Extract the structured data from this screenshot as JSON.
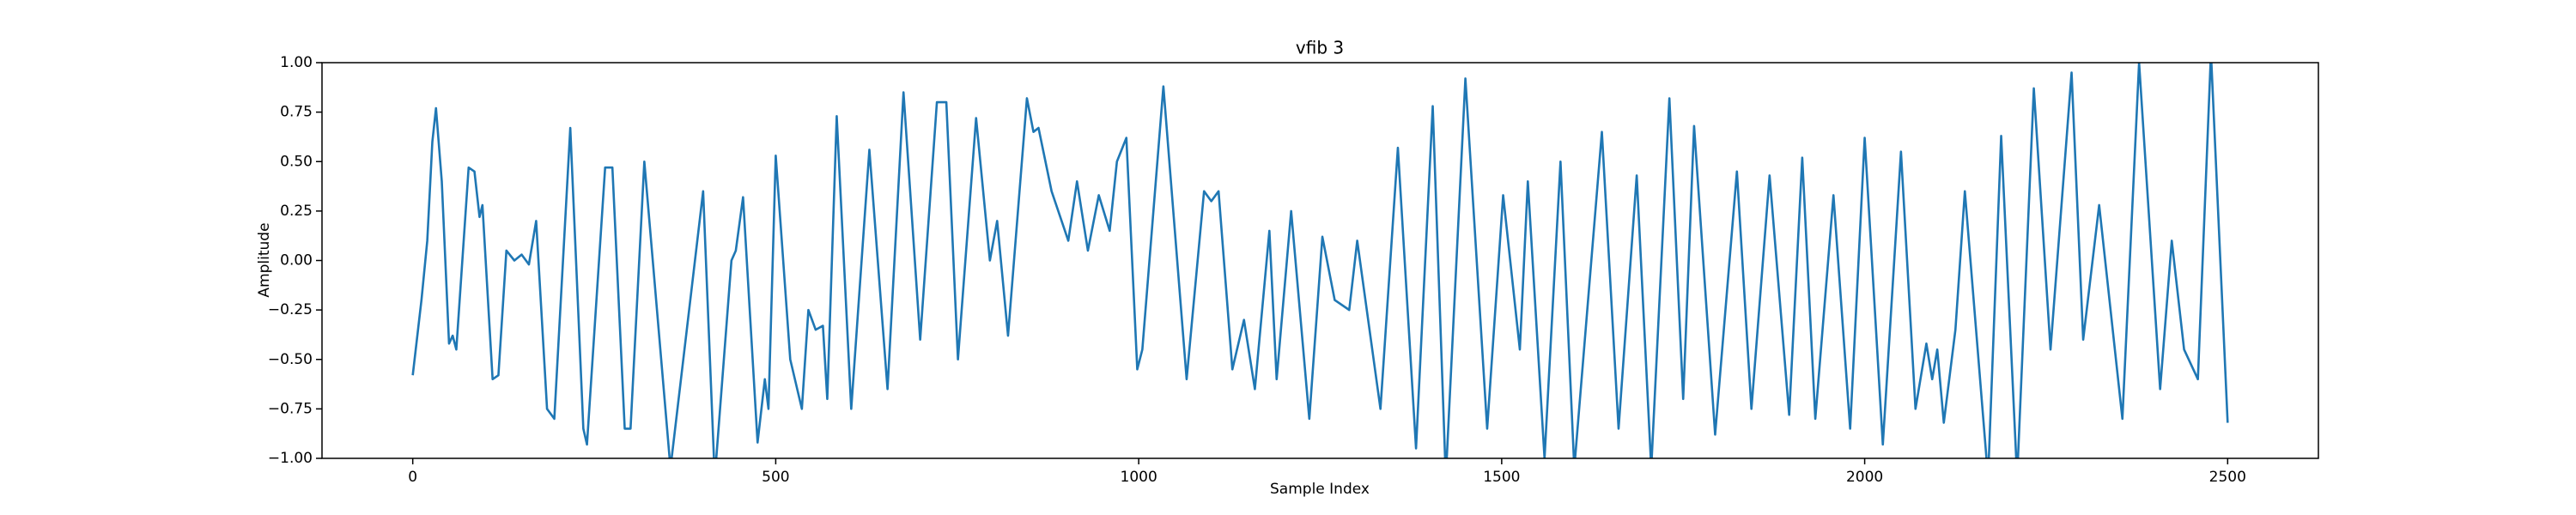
{
  "chart_data": {
    "type": "line",
    "title": "vfib 3",
    "x_label": "Sample Index",
    "y_label": "Amplitude",
    "xlim": [
      -125,
      2625
    ],
    "ylim": [
      -1,
      1
    ],
    "xticks": [
      0,
      500,
      1000,
      1500,
      2000,
      2500
    ],
    "yticks": [
      {
        "value": -1,
        "label": "−1.00"
      },
      {
        "value": -0.75,
        "label": "−0.75"
      },
      {
        "value": -0.5,
        "label": "−0.50"
      },
      {
        "value": -0.25,
        "label": "−0.25"
      },
      {
        "value": 0,
        "label": "0.00"
      },
      {
        "value": 0.25,
        "label": "0.25"
      },
      {
        "value": 0.5,
        "label": "0.50"
      },
      {
        "value": 0.75,
        "label": "0.75"
      },
      {
        "value": 1,
        "label": "1.00"
      }
    ],
    "grid": false,
    "series": [
      {
        "name": "vfib 3",
        "color": "#1f77b4",
        "x": [
          0,
          12,
          20,
          27,
          32,
          40,
          50,
          55,
          60,
          77,
          85,
          92,
          96,
          110,
          118,
          129,
          140,
          150,
          160,
          170,
          185,
          195,
          217,
          235,
          240,
          265,
          275,
          292,
          300,
          319,
          355,
          400,
          416,
          439,
          445,
          455,
          475,
          485,
          490,
          500,
          520,
          536,
          545,
          555,
          565,
          571,
          584,
          604,
          629,
          654,
          676,
          699,
          722,
          735,
          751,
          776,
          795,
          805,
          820,
          846,
          855,
          862,
          880,
          903,
          915,
          930,
          945,
          960,
          970,
          983,
          998,
          1005,
          1034,
          1066,
          1090,
          1100,
          1110,
          1129,
          1145,
          1160,
          1180,
          1190,
          1210,
          1235,
          1253,
          1270,
          1290,
          1301,
          1333,
          1357,
          1382,
          1405,
          1423,
          1450,
          1480,
          1502,
          1525,
          1536,
          1559,
          1581,
          1600,
          1638,
          1661,
          1686,
          1706,
          1731,
          1750,
          1765,
          1794,
          1824,
          1844,
          1869,
          1896,
          1914,
          1932,
          1957,
          1980,
          2000,
          2025,
          2050,
          2070,
          2085,
          2093,
          2100,
          2109,
          2125,
          2138,
          2170,
          2188,
          2210,
          2233,
          2256,
          2285,
          2301,
          2323,
          2355,
          2378,
          2407,
          2423,
          2440,
          2459,
          2477,
          2500
        ],
        "values": [
          -0.58,
          -0.2,
          0.1,
          0.6,
          0.77,
          0.4,
          -0.42,
          -0.38,
          -0.45,
          0.47,
          0.45,
          0.22,
          0.28,
          -0.6,
          -0.58,
          0.05,
          0.0,
          0.03,
          -0.02,
          0.2,
          -0.75,
          -0.8,
          0.67,
          -0.85,
          -0.93,
          0.47,
          0.47,
          -0.85,
          -0.85,
          0.5,
          -1.05,
          0.35,
          -1.1,
          0.0,
          0.05,
          0.32,
          -0.92,
          -0.6,
          -0.75,
          0.53,
          -0.5,
          -0.75,
          -0.25,
          -0.35,
          -0.33,
          -0.7,
          0.73,
          -0.75,
          0.56,
          -0.65,
          0.85,
          -0.4,
          0.8,
          0.8,
          -0.5,
          0.72,
          0.0,
          0.2,
          -0.38,
          0.82,
          0.65,
          0.67,
          0.35,
          0.1,
          0.4,
          0.05,
          0.33,
          0.15,
          0.5,
          0.62,
          -0.55,
          -0.45,
          0.88,
          -0.6,
          0.35,
          0.3,
          0.35,
          -0.55,
          -0.3,
          -0.65,
          0.15,
          -0.6,
          0.25,
          -0.8,
          0.12,
          -0.2,
          -0.25,
          0.1,
          -0.75,
          0.57,
          -0.95,
          0.78,
          -1.1,
          0.92,
          -0.85,
          0.33,
          -0.45,
          0.4,
          -1.0,
          0.5,
          -1.05,
          0.65,
          -0.85,
          0.43,
          -1.05,
          0.82,
          -0.7,
          0.68,
          -0.88,
          0.45,
          -0.75,
          0.43,
          -0.78,
          0.52,
          -0.8,
          0.33,
          -0.85,
          0.62,
          -0.93,
          0.55,
          -0.75,
          -0.42,
          -0.6,
          -0.45,
          -0.82,
          -0.35,
          0.35,
          -1.1,
          0.63,
          -1.1,
          0.87,
          -0.45,
          0.95,
          -0.4,
          0.28,
          -0.8,
          1.0,
          -0.65,
          0.1,
          -0.45,
          -0.6,
          1.05,
          -0.82
        ]
      }
    ]
  }
}
